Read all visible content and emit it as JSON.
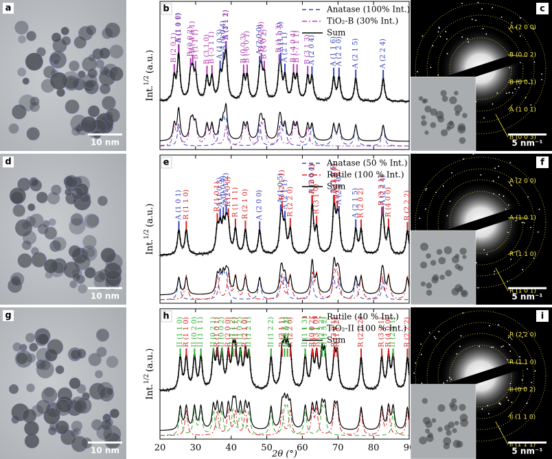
{
  "xrd_axes": {
    "xlim": [
      20,
      90
    ],
    "xticks": [
      20,
      30,
      40,
      50,
      60,
      70,
      80,
      90
    ],
    "xlabel": "2θ (°)",
    "ylabel": {
      "main": "Int.",
      "sup": "1/2",
      "unit": "(a.u.)"
    }
  },
  "panels": [
    {
      "tem": {
        "letter": "a",
        "scale": "10 nm"
      },
      "xrd": {
        "letter": "b",
        "sum": "Sum",
        "series": [
          {
            "name": "Anatase (100% Int.)",
            "color": "#3344bb",
            "dash": "6 4",
            "peaks": [
              {
                "label": "A (1 0 1)",
                "x": 25.3
              },
              {
                "label": "A (1 0 3)",
                "x": 36.9
              },
              {
                "label": "A (0 0 4)",
                "x": 37.8
              },
              {
                "label": "A (1 1 2)",
                "x": 38.6
              },
              {
                "label": "A (2 0 0)",
                "x": 48.0
              },
              {
                "label": "A (1 0 5)",
                "x": 53.9
              },
              {
                "label": "A (2 1 1)",
                "x": 55.1
              },
              {
                "label": "A (2 0 4)",
                "x": 62.7
              },
              {
                "label": "A (1 1 6)",
                "x": 68.8
              },
              {
                "label": "A (2 2 0)",
                "x": 70.3
              },
              {
                "label": "A (2 1 5)",
                "x": 75.0
              },
              {
                "label": "A (2 2 4)",
                "x": 82.7
              }
            ]
          },
          {
            "name": "TiO₂-B (30% Int.)",
            "color": "#b03ab0",
            "dash": "7 3 2 3",
            "peaks": [
              {
                "label": "B (2 0 1)",
                "x": 24.0
              },
              {
                "label": "B (1 1 0)",
                "x": 25.2
              },
              {
                "label": "B (0 0 2)",
                "x": 28.6
              },
              {
                "label": "B (-4 0 1)",
                "x": 29.2
              },
              {
                "label": "B (1 1 1)",
                "x": 30.0
              },
              {
                "label": "B (3 1 0)",
                "x": 33.2
              },
              {
                "label": "B (-3 1 1)",
                "x": 34.6
              },
              {
                "label": "B (3 1 1)",
                "x": 38.5
              },
              {
                "label": "B (0 0 3)",
                "x": 43.5
              },
              {
                "label": "B (-6 0 1)",
                "x": 44.5
              },
              {
                "label": "B (0 2 0)",
                "x": 48.5
              },
              {
                "label": "B (4 0 2)",
                "x": 49.3
              },
              {
                "label": "B (1 1 3)",
                "x": 53.5
              },
              {
                "label": "B (-4 0 4)",
                "x": 57.5
              },
              {
                "label": "B (-7 1 1)",
                "x": 58.5
              },
              {
                "label": "B (3 1 3)",
                "x": 61.5
              }
            ]
          }
        ]
      },
      "saed": {
        "letter": "c",
        "scale": "5 nm⁻¹",
        "rings": [
          "A (2 0 0)",
          "B (0 0 2)",
          "B (0 0 1)",
          "A (1 0 1)",
          "B (0 0 3)"
        ]
      }
    },
    {
      "tem": {
        "letter": "d",
        "scale": "10 nm"
      },
      "xrd": {
        "letter": "e",
        "sum": "Sum",
        "series": [
          {
            "name": "Anatase (50 % Int.)",
            "color": "#3344bb",
            "dash": "6 4",
            "peaks": [
              {
                "label": "A (1 0 1)",
                "x": 25.3
              },
              {
                "label": "A (1 0 3)",
                "x": 36.9
              },
              {
                "label": "A (0 0 4)",
                "x": 37.8
              },
              {
                "label": "A (1 1 2)",
                "x": 38.6
              },
              {
                "label": "A (2 0 0)",
                "x": 48.0
              },
              {
                "label": "A (1 0 5)",
                "x": 53.9
              },
              {
                "label": "A (2 1 1)",
                "x": 55.1
              },
              {
                "label": "A (2 0 4)",
                "x": 62.7
              },
              {
                "label": "A (1 1 6)",
                "x": 68.8
              },
              {
                "label": "A (2 2 0)",
                "x": 70.3
              },
              {
                "label": "A (2 1 5)",
                "x": 75.0
              },
              {
                "label": "A (2 2 4)",
                "x": 82.7
              }
            ]
          },
          {
            "name": "Rutile (100 % Int.)",
            "color": "#dd2222",
            "dash": "7 3 2 3",
            "peaks": [
              {
                "label": "R (1 1 0)",
                "x": 27.4
              },
              {
                "label": "R (1 0 1)",
                "x": 36.1
              },
              {
                "label": "R (2 0 0)",
                "x": 39.2
              },
              {
                "label": "R (1 1 1)",
                "x": 41.2
              },
              {
                "label": "R (2 1 0)",
                "x": 44.0
              },
              {
                "label": "R (2 1 1)",
                "x": 54.3
              },
              {
                "label": "R (2 2 0)",
                "x": 56.6
              },
              {
                "label": "R (0 0 2)",
                "x": 62.8
              },
              {
                "label": "R (3 1 0)",
                "x": 64.0
              },
              {
                "label": "R (3 0 1)",
                "x": 69.0
              },
              {
                "label": "R (1 1 2)",
                "x": 69.8
              },
              {
                "label": "R (2 0 2)",
                "x": 76.5
              },
              {
                "label": "R (3 2 1)",
                "x": 82.3
              },
              {
                "label": "R (4 0 0)",
                "x": 84.2
              },
              {
                "label": "R (2 2 2)",
                "x": 89.5
              }
            ]
          }
        ]
      },
      "saed": {
        "letter": "f",
        "scale": "5 nm⁻¹",
        "rings": [
          "A (2 0 0)",
          "A (1 0 1)",
          "R (1 1 0)",
          "R (1 0 1)"
        ]
      }
    },
    {
      "tem": {
        "letter": "g",
        "scale": "10 nm"
      },
      "xrd": {
        "letter": "h",
        "sum": "Sum",
        "series": [
          {
            "name": "Rutile (40 % Int.)",
            "color": "#dd2222",
            "dash": "7 3 2 3",
            "peaks": [
              {
                "label": "R (1 1 0)",
                "x": 27.4
              },
              {
                "label": "R (1 0 1)",
                "x": 36.1
              },
              {
                "label": "R (2 0 0)",
                "x": 39.2
              },
              {
                "label": "R (1 1 1)",
                "x": 41.2
              },
              {
                "label": "R (2 1 0)",
                "x": 44.0
              },
              {
                "label": "R (2 1 1)",
                "x": 54.3
              },
              {
                "label": "R (2 2 0)",
                "x": 56.6
              },
              {
                "label": "R (0 0 2)",
                "x": 62.8
              },
              {
                "label": "R (3 1 0)",
                "x": 64.0
              },
              {
                "label": "R (3 0 1)",
                "x": 69.0
              },
              {
                "label": "R (1 1 2)",
                "x": 69.8
              },
              {
                "label": "R (2 0 2)",
                "x": 76.5
              },
              {
                "label": "R (3 2 1)",
                "x": 82.3
              },
              {
                "label": "R (4 0 0)",
                "x": 84.2
              },
              {
                "label": "R (2 2 2)",
                "x": 89.5
              }
            ]
          },
          {
            "name": "TiO₂-II (100 % Int.)",
            "color": "#33aa33",
            "dash": "6 4",
            "peaks": [
              {
                "label": "II (1 1 0)",
                "x": 25.7
              },
              {
                "label": "II (0 2 0)",
                "x": 29.7
              },
              {
                "label": "II (1 1 1)",
                "x": 31.5
              },
              {
                "label": "II (0 2 1)",
                "x": 35.0
              },
              {
                "label": "II (0 0 2)",
                "x": 37.4
              },
              {
                "label": "II (1 1 2)",
                "x": 40.5
              },
              {
                "label": "II (1 0 2)",
                "x": 42.6
              },
              {
                "label": "II (1 2 1)",
                "x": 45.0
              },
              {
                "label": "II (1 2 2)",
                "x": 51.2
              },
              {
                "label": "II (2 2 1)",
                "x": 55.0
              },
              {
                "label": "II (2 0 2)",
                "x": 55.8
              },
              {
                "label": "II (1 1 3)",
                "x": 60.8
              },
              {
                "label": "II (2 2 2)",
                "x": 65.5
              },
              {
                "label": "II (1 3 2)",
                "x": 66.3
              },
              {
                "label": "II (2 4 1)",
                "x": 85.5
              }
            ]
          }
        ]
      },
      "saed": {
        "letter": "i",
        "scale": "5 nm⁻¹",
        "rings": [
          "R (2 2 0)",
          "R (1 1 0)",
          "II (0 0 2)",
          "II (1 1 0)",
          "II (1 1 1)"
        ]
      }
    }
  ]
}
